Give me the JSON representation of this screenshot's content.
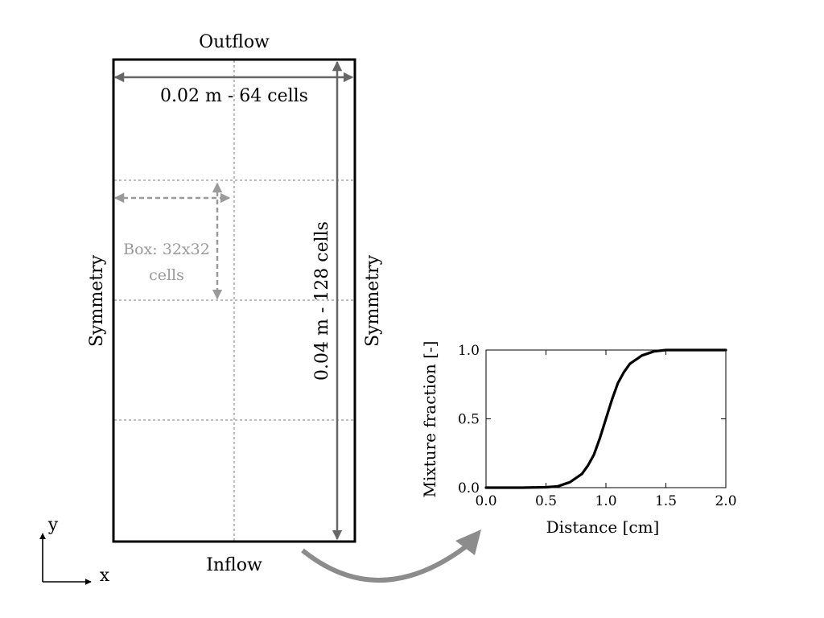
{
  "domain_labels": {
    "outflow": "Outflow",
    "inflow": "Inflow",
    "left_boundary": "Symmetry",
    "right_boundary": "Symmetry",
    "width": "0.02 m - 64 cells",
    "height": "0.04 m - 128 cells",
    "box_line1": "Box: 32x32",
    "box_line2": "cells"
  },
  "axes_indicator": {
    "x_label": "x",
    "y_label": "y"
  },
  "colors": {
    "frame": "#000000",
    "dimension": "#666666",
    "grid": "#999999",
    "box": "#9a9a9a",
    "curved_arrow": "#8c8c8c"
  },
  "chart_data": {
    "type": "line",
    "xlabel": "Distance [cm]",
    "ylabel": "Mixture fraction [-]",
    "xlim": [
      0.0,
      2.0
    ],
    "ylim": [
      0.0,
      1.0
    ],
    "x_ticks": [
      "0.0",
      "0.5",
      "1.0",
      "1.5",
      "2.0"
    ],
    "y_ticks": [
      "0.0",
      "0.5",
      "1.0"
    ],
    "x_tick_values": [
      0.0,
      0.5,
      1.0,
      1.5,
      2.0
    ],
    "y_tick_values": [
      0.0,
      0.5,
      1.0
    ],
    "grid": false,
    "series": [
      {
        "x": [
          0.0,
          0.3,
          0.5,
          0.6,
          0.7,
          0.8,
          0.85,
          0.9,
          0.95,
          1.0,
          1.05,
          1.1,
          1.15,
          1.2,
          1.3,
          1.4,
          1.5,
          1.6,
          1.8,
          2.0
        ],
        "y": [
          0.0,
          0.0,
          0.003,
          0.01,
          0.04,
          0.1,
          0.16,
          0.24,
          0.36,
          0.5,
          0.64,
          0.76,
          0.84,
          0.9,
          0.96,
          0.99,
          1.0,
          1.0,
          1.0,
          1.0
        ]
      }
    ]
  }
}
